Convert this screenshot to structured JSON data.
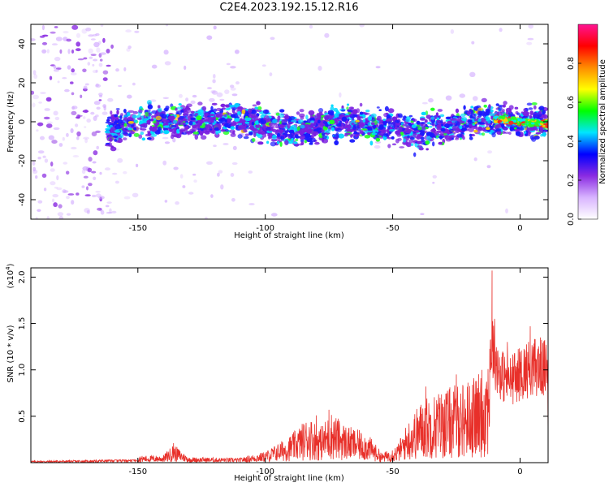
{
  "page": {
    "title": "C2E4.2023.192.15.12.R16"
  },
  "chart_data": [
    {
      "type": "heatmap",
      "xlabel": "Height of straight line (km)",
      "ylabel": "Frequency (Hz)",
      "xlim": [
        -192,
        11
      ],
      "ylim": [
        -50,
        50
      ],
      "xticks": [
        -150,
        -100,
        -50,
        0
      ],
      "yticks": [
        -40,
        -20,
        0,
        20,
        40
      ],
      "colorbar": {
        "label": "Normalized spectral amplitude",
        "range": [
          0.0,
          1.0
        ],
        "ticks": [
          "0.0",
          "0.2",
          "0.4",
          "0.6",
          "0.8"
        ],
        "colormap": [
          "#ffffff",
          "#d8b4ff",
          "#8a2be2",
          "#0000ff",
          "#00e5ff",
          "#00ff00",
          "#ffff00",
          "#ff8c00",
          "#ff0000",
          "#ff1493"
        ]
      },
      "ridge": [
        {
          "x": -160,
          "y": -4
        },
        {
          "x": -150,
          "y": 0
        },
        {
          "x": -130,
          "y": 0
        },
        {
          "x": -110,
          "y": 1
        },
        {
          "x": -90,
          "y": -4
        },
        {
          "x": -70,
          "y": 0
        },
        {
          "x": -50,
          "y": -3
        },
        {
          "x": -40,
          "y": -6
        },
        {
          "x": -20,
          "y": 0
        },
        {
          "x": -12,
          "y": 2
        },
        {
          "x": 0,
          "y": 0
        },
        {
          "x": 10,
          "y": -1
        }
      ]
    },
    {
      "type": "line",
      "xlabel": "Height of straight line (km)",
      "ylabel": "SNR (10 * v/v)",
      "yscale_label": "(x10",
      "yscale_exp": "4",
      "xlim": [
        -192,
        11
      ],
      "ylim": [
        0,
        2.1
      ],
      "xticks": [
        -150,
        -100,
        -50,
        0
      ],
      "yticks": [
        "0.5",
        "1.0",
        "1.5",
        "2.0"
      ],
      "series": [
        {
          "color": "#e8302a",
          "envelope": [
            {
              "x": -192,
              "y": 0.02
            },
            {
              "x": -165,
              "y": 0.03
            },
            {
              "x": -155,
              "y": 0.07
            },
            {
              "x": -140,
              "y": 0.08
            },
            {
              "x": -136,
              "y": 0.2
            },
            {
              "x": -130,
              "y": 0.06
            },
            {
              "x": -110,
              "y": 0.05
            },
            {
              "x": -100,
              "y": 0.12
            },
            {
              "x": -90,
              "y": 0.3
            },
            {
              "x": -83,
              "y": 0.5
            },
            {
              "x": -78,
              "y": 0.4
            },
            {
              "x": -74,
              "y": 0.55
            },
            {
              "x": -68,
              "y": 0.4
            },
            {
              "x": -60,
              "y": 0.32
            },
            {
              "x": -54,
              "y": 0.1
            },
            {
              "x": -48,
              "y": 0.2
            },
            {
              "x": -44,
              "y": 0.45
            },
            {
              "x": -38,
              "y": 0.7
            },
            {
              "x": -30,
              "y": 0.8
            },
            {
              "x": -20,
              "y": 0.9
            },
            {
              "x": -14,
              "y": 1.0
            },
            {
              "x": -11,
              "y": 1.6
            },
            {
              "x": -8,
              "y": 1.2
            },
            {
              "x": -4,
              "y": 1.1
            },
            {
              "x": 0,
              "y": 1.2
            },
            {
              "x": 5,
              "y": 1.3
            },
            {
              "x": 11,
              "y": 1.25
            }
          ],
          "peaks": [
            {
              "x": -136,
              "y": 0.21
            },
            {
              "x": -80,
              "y": 0.51
            },
            {
              "x": -75,
              "y": 0.57
            },
            {
              "x": -37,
              "y": 0.82
            },
            {
              "x": -25,
              "y": 0.95
            },
            {
              "x": -15,
              "y": 1.0
            },
            {
              "x": -11,
              "y": 2.07
            },
            {
              "x": -10,
              "y": 1.55
            },
            {
              "x": -5,
              "y": 1.3
            },
            {
              "x": 4,
              "y": 1.47
            },
            {
              "x": 8,
              "y": 1.35
            }
          ]
        }
      ]
    }
  ]
}
